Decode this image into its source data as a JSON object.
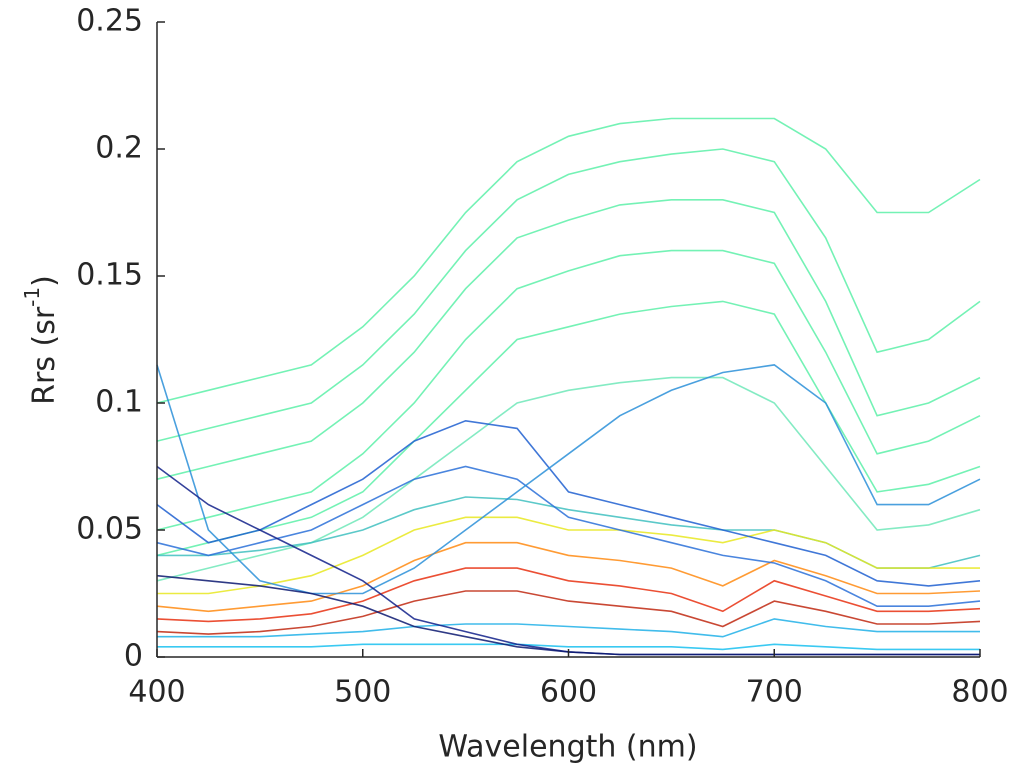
{
  "chart_data": {
    "type": "line",
    "x_label": "Wavelength (nm)",
    "y_label": [
      "Rrs (sr",
      "-1",
      ")"
    ],
    "x": [
      400,
      425,
      450,
      475,
      500,
      525,
      550,
      575,
      600,
      625,
      650,
      675,
      700,
      725,
      750,
      775,
      800
    ],
    "xlim": [
      400,
      800
    ],
    "xticks": [
      400,
      500,
      600,
      700,
      800
    ],
    "ylim": [
      0,
      0.25
    ],
    "yticks": [
      0,
      0.05,
      0.1,
      0.15,
      0.2,
      0.25
    ],
    "series": [
      {
        "color": "#5cf0a8",
        "values": [
          0.1,
          0.105,
          0.11,
          0.115,
          0.13,
          0.15,
          0.175,
          0.195,
          0.205,
          0.21,
          0.212,
          0.212,
          0.212,
          0.2,
          0.175,
          0.175,
          0.188
        ]
      },
      {
        "color": "#5cf0a8",
        "values": [
          0.085,
          0.09,
          0.095,
          0.1,
          0.115,
          0.135,
          0.16,
          0.18,
          0.19,
          0.195,
          0.198,
          0.2,
          0.195,
          0.165,
          0.12,
          0.125,
          0.14
        ]
      },
      {
        "color": "#5cf0a8",
        "values": [
          0.07,
          0.075,
          0.08,
          0.085,
          0.1,
          0.12,
          0.145,
          0.165,
          0.172,
          0.178,
          0.18,
          0.18,
          0.175,
          0.14,
          0.095,
          0.1,
          0.11
        ]
      },
      {
        "color": "#5cf0a8",
        "values": [
          0.05,
          0.055,
          0.06,
          0.065,
          0.08,
          0.1,
          0.125,
          0.145,
          0.152,
          0.158,
          0.16,
          0.16,
          0.155,
          0.12,
          0.08,
          0.085,
          0.095
        ]
      },
      {
        "color": "#5cf0a8",
        "values": [
          0.04,
          0.045,
          0.05,
          0.055,
          0.065,
          0.085,
          0.105,
          0.125,
          0.13,
          0.135,
          0.138,
          0.14,
          0.135,
          0.1,
          0.065,
          0.068,
          0.075
        ]
      },
      {
        "color": "#6ee8b8",
        "values": [
          0.03,
          0.035,
          0.04,
          0.045,
          0.055,
          0.07,
          0.085,
          0.1,
          0.105,
          0.108,
          0.11,
          0.11,
          0.1,
          0.075,
          0.05,
          0.052,
          0.058
        ]
      },
      {
        "color": "#40c0c0",
        "values": [
          0.04,
          0.04,
          0.042,
          0.045,
          0.05,
          0.058,
          0.063,
          0.062,
          0.058,
          0.055,
          0.052,
          0.05,
          0.05,
          0.045,
          0.035,
          0.035,
          0.04
        ]
      },
      {
        "color": "#e8e820",
        "values": [
          0.025,
          0.025,
          0.028,
          0.032,
          0.04,
          0.05,
          0.055,
          0.055,
          0.05,
          0.05,
          0.048,
          0.045,
          0.05,
          0.045,
          0.035,
          0.035,
          0.035
        ]
      },
      {
        "color": "#ff8a10",
        "values": [
          0.02,
          0.018,
          0.02,
          0.022,
          0.028,
          0.038,
          0.045,
          0.045,
          0.04,
          0.038,
          0.035,
          0.028,
          0.038,
          0.032,
          0.025,
          0.025,
          0.026
        ]
      },
      {
        "color": "#e83010",
        "values": [
          0.015,
          0.014,
          0.015,
          0.017,
          0.022,
          0.03,
          0.035,
          0.035,
          0.03,
          0.028,
          0.025,
          0.018,
          0.03,
          0.024,
          0.018,
          0.018,
          0.019
        ]
      },
      {
        "color": "#c02810",
        "values": [
          0.01,
          0.009,
          0.01,
          0.012,
          0.016,
          0.022,
          0.026,
          0.026,
          0.022,
          0.02,
          0.018,
          0.012,
          0.022,
          0.018,
          0.013,
          0.013,
          0.014
        ]
      },
      {
        "color": "#20b0e8",
        "values": [
          0.008,
          0.008,
          0.008,
          0.009,
          0.01,
          0.012,
          0.013,
          0.013,
          0.012,
          0.011,
          0.01,
          0.008,
          0.015,
          0.012,
          0.01,
          0.01,
          0.01
        ]
      },
      {
        "color": "#18c0f0",
        "values": [
          0.004,
          0.004,
          0.004,
          0.004,
          0.005,
          0.005,
          0.005,
          0.005,
          0.004,
          0.004,
          0.004,
          0.003,
          0.005,
          0.004,
          0.003,
          0.003,
          0.003
        ]
      },
      {
        "color": "#1f5fd0",
        "values": [
          0.06,
          0.045,
          0.05,
          0.06,
          0.07,
          0.085,
          0.093,
          0.09,
          0.065,
          0.06,
          0.055,
          0.05,
          0.045,
          0.04,
          0.03,
          0.028,
          0.03
        ]
      },
      {
        "color": "#2a70d8",
        "values": [
          0.045,
          0.04,
          0.045,
          0.05,
          0.06,
          0.07,
          0.075,
          0.07,
          0.055,
          0.05,
          0.045,
          0.04,
          0.037,
          0.03,
          0.02,
          0.02,
          0.022
        ]
      },
      {
        "color": "#2a8fd8",
        "values": [
          0.115,
          0.05,
          0.03,
          0.025,
          0.025,
          0.035,
          0.05,
          0.065,
          0.08,
          0.095,
          0.105,
          0.112,
          0.115,
          0.1,
          0.06,
          0.06,
          0.07
        ]
      },
      {
        "color": "#10208a",
        "values": [
          0.075,
          0.06,
          0.05,
          0.04,
          0.03,
          0.015,
          0.01,
          0.005,
          0.002,
          0.001,
          0.001,
          0.001,
          0.001,
          0.001,
          0.001,
          0.001,
          0.001
        ]
      },
      {
        "color": "#0a1870",
        "values": [
          0.032,
          0.03,
          0.028,
          0.025,
          0.02,
          0.012,
          0.008,
          0.004,
          0.002,
          0.001,
          0.001,
          0.001,
          0.001,
          0.001,
          0.001,
          0.001,
          0.001
        ]
      }
    ]
  }
}
